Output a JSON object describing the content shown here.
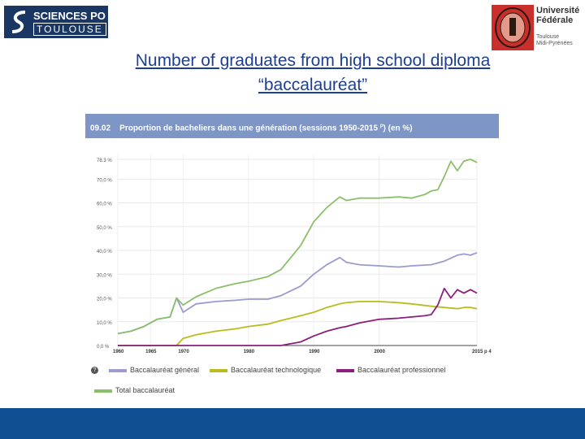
{
  "logos": {
    "left_line1": "SCIENCES PO",
    "left_line2": "TOULOUSE",
    "right_line1": "Université",
    "right_line2": "Fédérale",
    "right_line3": "Toulouse",
    "right_line4": "Midi-Pyrénées"
  },
  "slide": {
    "title_line1": "Number of graduates from high school diploma",
    "title_line2": "“baccalauréat”"
  },
  "colors": {
    "header_bg": "#7e96c5",
    "general": "#9b9bd0",
    "technologique": "#b8bd1e",
    "professionnel": "#8b1f7a",
    "total": "#8bbf6a",
    "bottom_bar": "#0f4f92"
  },
  "chart_data": {
    "type": "line",
    "code": "09.02",
    "title": "Proportion de bacheliers dans une génération (sessions 1950-2015",
    "title_sup": "p",
    "title_suffix": ") (en %)",
    "xlim": [
      1960,
      2015
    ],
    "ylim": [
      0,
      80
    ],
    "x_ticks": [
      1960,
      1965,
      1970,
      1980,
      1990,
      2000,
      2015
    ],
    "x_tick_labels": [
      "1960",
      "1965",
      "1970",
      "1980",
      "1990",
      "2000",
      "2015 p 4"
    ],
    "y_ticks": [
      0,
      10,
      20,
      30,
      40,
      50,
      60,
      70,
      78.3
    ],
    "y_tick_labels": [
      "0,0 %",
      "10,0 %",
      "20,0 %",
      "30,0 %",
      "40,0 %",
      "50,0 %",
      "60,0 %",
      "70,0 %",
      "78.3 %"
    ],
    "grid": true,
    "series": [
      {
        "name": "Baccalauréat général",
        "x": [
          1960,
          1962,
          1964,
          1966,
          1968,
          1969,
          1970,
          1972,
          1975,
          1978,
          1980,
          1983,
          1985,
          1988,
          1990,
          1992,
          1994,
          1995,
          1997,
          2000,
          2003,
          2005,
          2008,
          2010,
          2012,
          2013,
          2014,
          2015
        ],
        "y": [
          5,
          6,
          8,
          11,
          12,
          20,
          14,
          17.5,
          18.5,
          19,
          19.5,
          19.5,
          21,
          25,
          30,
          34,
          37,
          35,
          34,
          33.5,
          33,
          33.5,
          34,
          35.5,
          38,
          38.5,
          38,
          39
        ]
      },
      {
        "name": "Baccalauréat technologique",
        "x": [
          1960,
          1968,
          1969,
          1970,
          1972,
          1975,
          1978,
          1980,
          1983,
          1985,
          1988,
          1990,
          1992,
          1994,
          1995,
          1997,
          2000,
          2003,
          2005,
          2008,
          2010,
          2012,
          2013,
          2014,
          2015
        ],
        "y": [
          0,
          0,
          0,
          3,
          4.5,
          6,
          7,
          8,
          9,
          10.5,
          12.5,
          14,
          16,
          17.5,
          18,
          18.5,
          18.5,
          18,
          17.5,
          16.5,
          16,
          15.5,
          16,
          16,
          15.5
        ]
      },
      {
        "name": "Baccalauréat professionnel",
        "x": [
          1960,
          1985,
          1986,
          1988,
          1990,
          1992,
          1994,
          1995,
          1997,
          2000,
          2003,
          2005,
          2007,
          2008,
          2009,
          2010,
          2011,
          2012,
          2013,
          2014,
          2015
        ],
        "y": [
          0,
          0,
          0.5,
          1.5,
          4,
          6,
          7.5,
          8,
          9.5,
          11,
          11.5,
          12,
          12.5,
          13,
          17,
          24,
          20,
          23.5,
          22,
          23.5,
          22
        ]
      },
      {
        "name": "Total baccalauréat",
        "x": [
          1960,
          1962,
          1964,
          1966,
          1968,
          1969,
          1970,
          1972,
          1975,
          1978,
          1980,
          1983,
          1985,
          1988,
          1990,
          1992,
          1994,
          1995,
          1997,
          2000,
          2003,
          2005,
          2007,
          2008,
          2009,
          2010,
          2011,
          2012,
          2013,
          2014,
          2015
        ],
        "y": [
          5,
          6,
          8,
          11,
          12,
          20,
          17,
          20.5,
          24,
          26,
          27,
          29,
          32,
          42,
          52,
          58,
          62.5,
          61,
          62,
          62,
          62.5,
          62,
          63.5,
          65,
          65.5,
          71,
          77.5,
          73.5,
          77.5,
          78.3,
          77
        ]
      }
    ],
    "legend": {
      "items": [
        "Baccalauréat général",
        "Baccalauréat technologique",
        "Baccalauréat professionnel",
        "Total baccalauréat"
      ],
      "help_glyph": "?"
    }
  }
}
